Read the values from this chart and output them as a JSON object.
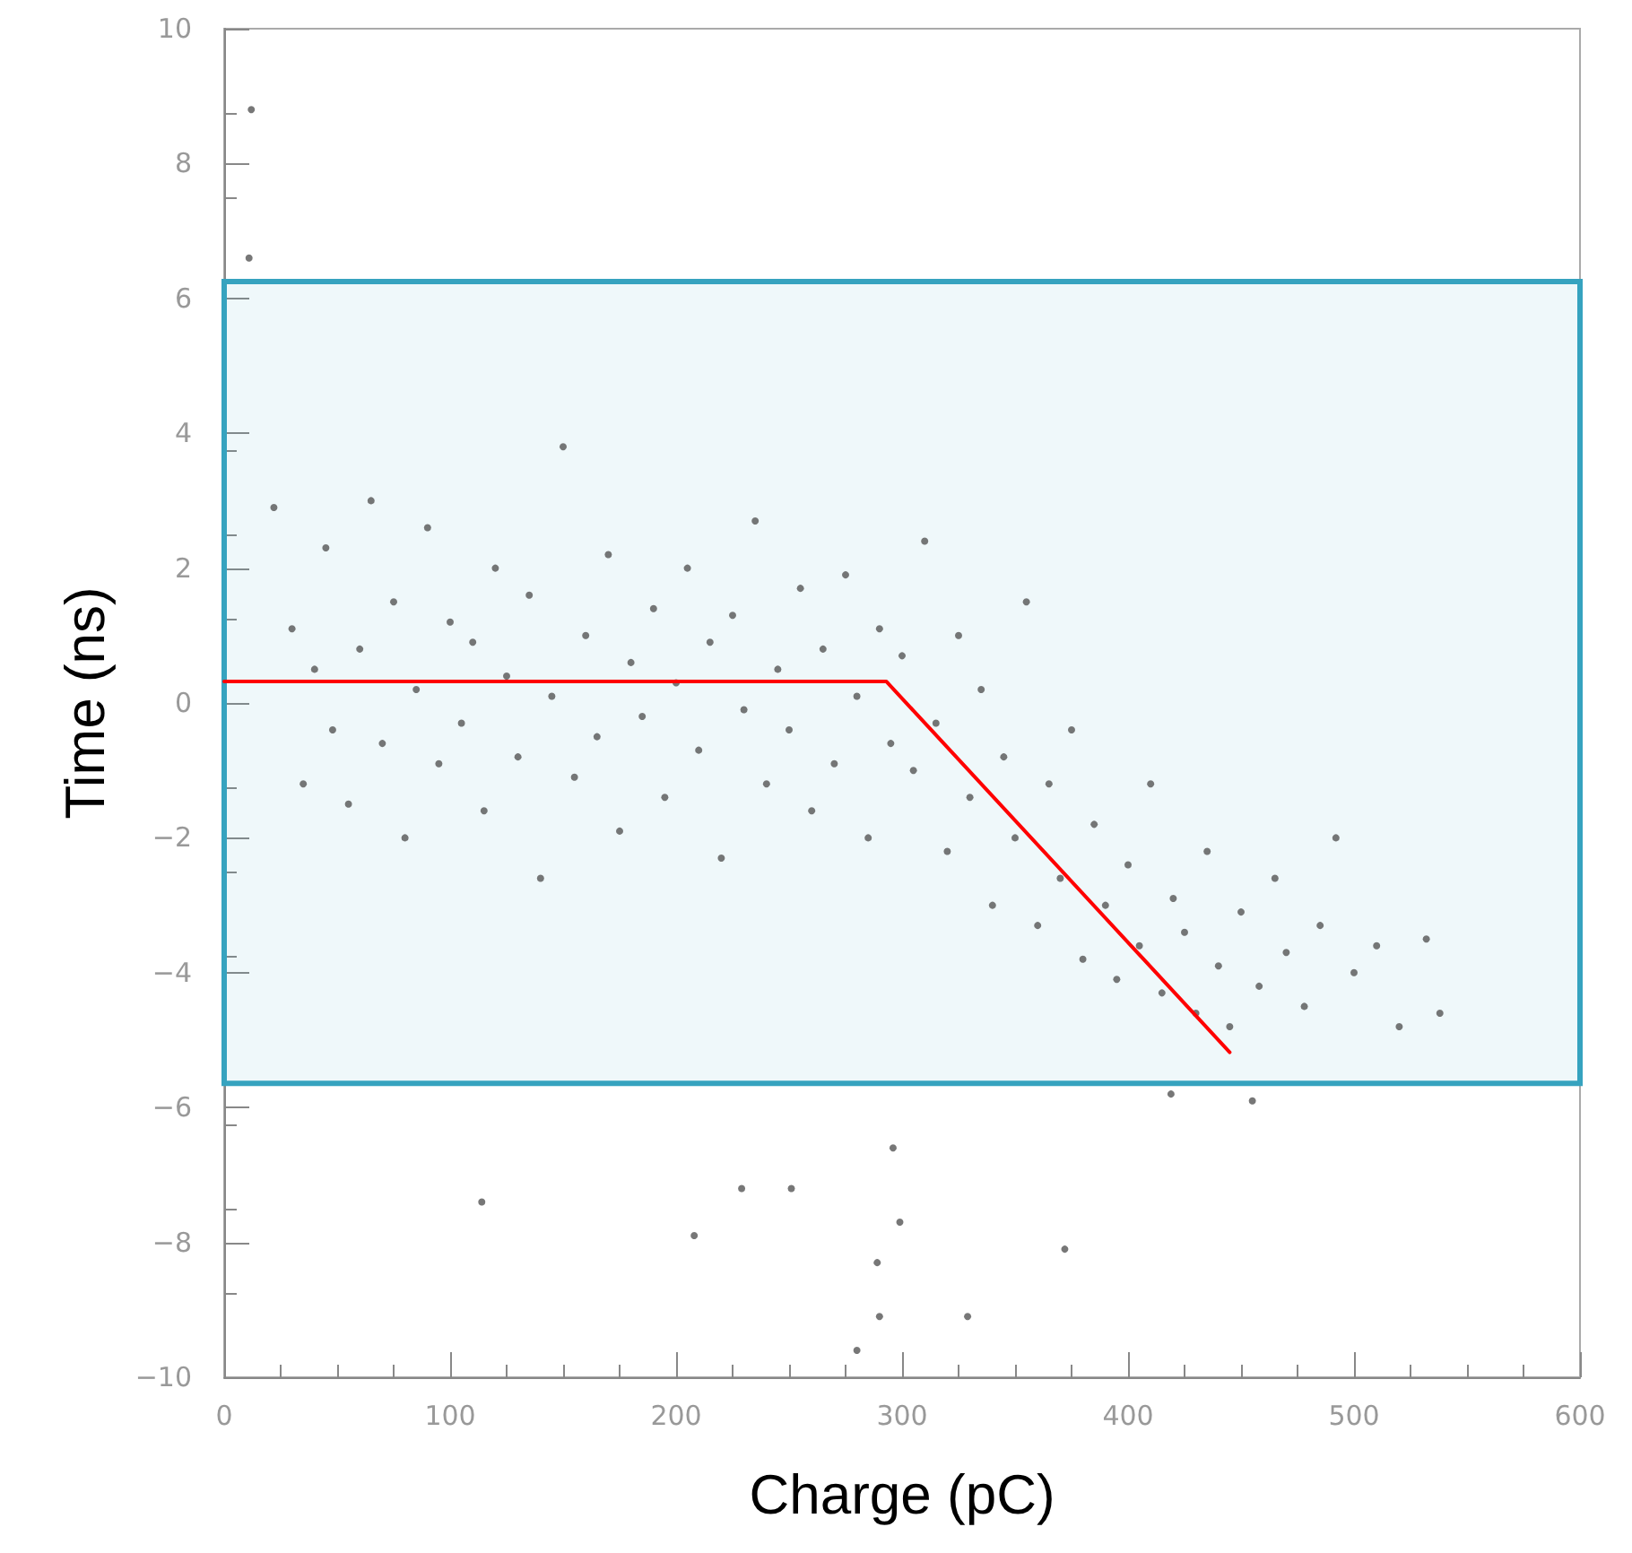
{
  "chart_data": {
    "type": "scatter",
    "xlabel": "Charge (pC)",
    "ylabel": "Time (ns)",
    "xlim": [
      0,
      600
    ],
    "xticks": [
      0,
      100,
      200,
      300,
      400,
      500,
      600
    ],
    "ylim": [
      -10,
      10
    ],
    "yticks": [
      {
        "value": -10,
        "label": "−10"
      },
      {
        "value": -8,
        "label": "−8"
      },
      {
        "value": -6,
        "label": "−6"
      },
      {
        "value": -4,
        "label": "−4"
      },
      {
        "value": -2,
        "label": "−2"
      },
      0,
      2,
      4,
      6,
      8,
      10
    ],
    "grid": false,
    "marker": "circle",
    "bands": [
      {
        "axis": "y",
        "from": -5.64,
        "to": 6.25,
        "color": "#36a3bf"
      }
    ],
    "series": [
      {
        "color": "#555555",
        "x": [
          12,
          11,
          22,
          30,
          35,
          40,
          45,
          48,
          55,
          60,
          65,
          70,
          75,
          80,
          85,
          90,
          95,
          100,
          105,
          110,
          115,
          120,
          125,
          130,
          135,
          140,
          145,
          150,
          155,
          160,
          165,
          170,
          175,
          180,
          185,
          190,
          195,
          200,
          205,
          210,
          215,
          220,
          225,
          230,
          235,
          240,
          245,
          250,
          255,
          260,
          265,
          270,
          275,
          280,
          285,
          290,
          295,
          300,
          305,
          310,
          315,
          320,
          325,
          330,
          335,
          340,
          345,
          350,
          355,
          360,
          365,
          370,
          375,
          380,
          385,
          390,
          395,
          400,
          405,
          410,
          415,
          420,
          425,
          430,
          435,
          440,
          445,
          450,
          458,
          465,
          470,
          478,
          485,
          492,
          500,
          510,
          520,
          532,
          538,
          114,
          296,
          299,
          208,
          372,
          289,
          290,
          329,
          280,
          419,
          455,
          229,
          251
        ],
        "values": [
          8.8,
          6.6,
          2.9,
          1.1,
          -1.2,
          0.5,
          2.3,
          -0.4,
          -1.5,
          0.8,
          3.0,
          -0.6,
          1.5,
          -2.0,
          0.2,
          2.6,
          -0.9,
          1.2,
          -0.3,
          0.9,
          -1.6,
          2.0,
          0.4,
          -0.8,
          1.6,
          -2.6,
          0.1,
          3.8,
          -1.1,
          1.0,
          -0.5,
          2.2,
          -1.9,
          0.6,
          -0.2,
          1.4,
          -1.4,
          0.3,
          2.0,
          -0.7,
          0.9,
          -2.3,
          1.3,
          -0.1,
          2.7,
          -1.2,
          0.5,
          -0.4,
          1.7,
          -1.6,
          0.8,
          -0.9,
          1.9,
          0.1,
          -2.0,
          1.1,
          -0.6,
          0.7,
          -1.0,
          2.4,
          -0.3,
          -2.2,
          1.0,
          -1.4,
          0.2,
          -3.0,
          -0.8,
          -2.0,
          1.5,
          -3.3,
          -1.2,
          -2.6,
          -0.4,
          -3.8,
          -1.8,
          -3.0,
          -4.1,
          -2.4,
          -3.6,
          -1.2,
          -4.3,
          -2.9,
          -3.4,
          -4.6,
          -2.2,
          -3.9,
          -4.8,
          -3.1,
          -4.2,
          -2.6,
          -3.7,
          -4.5,
          -3.3,
          -2.0,
          -4.0,
          -3.6,
          -4.8,
          -3.5,
          -4.6,
          -7.4,
          -6.6,
          -7.7,
          -7.9,
          -8.1,
          -8.3,
          -9.1,
          -9.1,
          -9.6,
          -5.8,
          -5.9,
          -7.2,
          -7.2
        ]
      },
      {
        "type": "line",
        "color": "#ff0000",
        "marker": "none",
        "x": [
          0,
          293,
          445
        ],
        "values": [
          0.32,
          0.32,
          -5.18
        ]
      }
    ]
  }
}
